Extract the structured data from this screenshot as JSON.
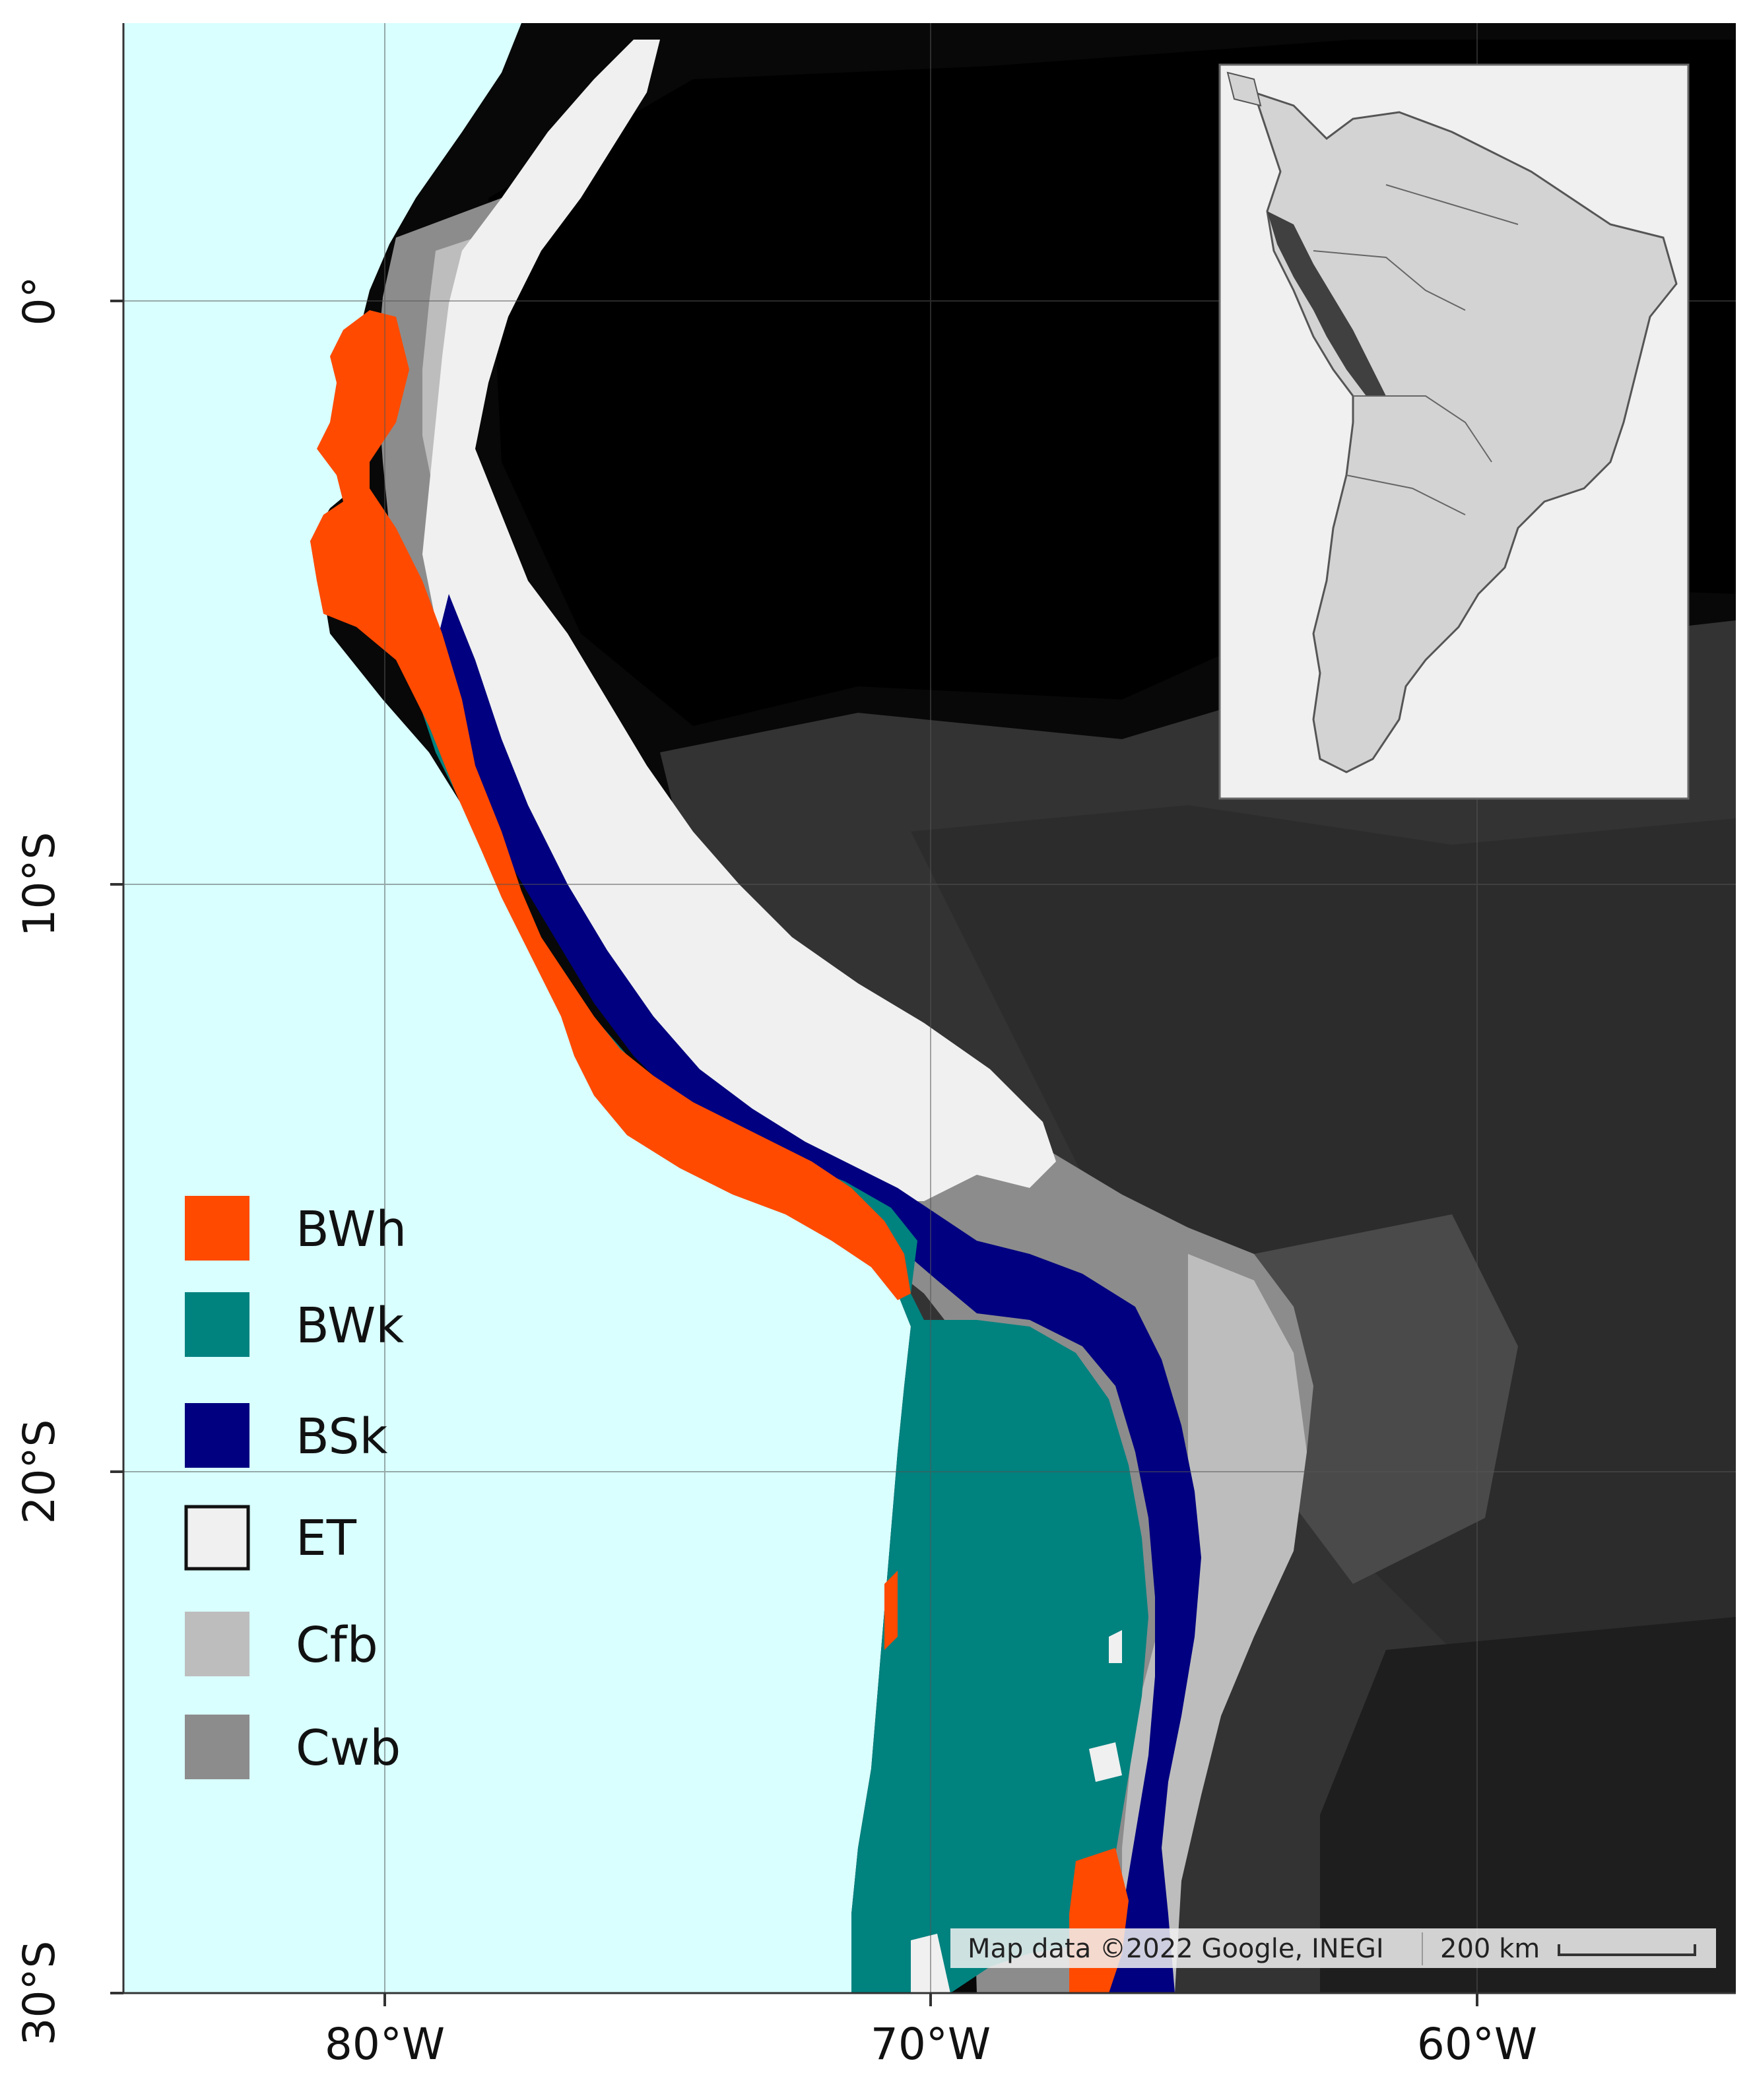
{
  "axes": {
    "x_ticks": [
      "80°W",
      "70°W",
      "60°W"
    ],
    "y_ticks": [
      "0°",
      "10°S",
      "20°S",
      "30°S"
    ]
  },
  "legend": {
    "items": [
      {
        "code": "BWh",
        "color": "#ff4a00"
      },
      {
        "code": "BWk",
        "color": "#00827f"
      },
      {
        "code": "BSk",
        "color": "#000080"
      },
      {
        "code": "ET",
        "color": "#f0f0f0"
      },
      {
        "code": "Cfb",
        "color": "#bdbdbd"
      },
      {
        "code": "Cwb",
        "color": "#8c8c8c"
      }
    ]
  },
  "attribution": {
    "map_data": "Map data ©2022 Google, INEGI",
    "scale": "200 km"
  },
  "colors": {
    "ocean": "#d9ffff",
    "land_dark": "#000000",
    "inset_background": "#f0f0f0",
    "inset_land": "#d3d3d3",
    "inset_highlight": "#404040"
  }
}
